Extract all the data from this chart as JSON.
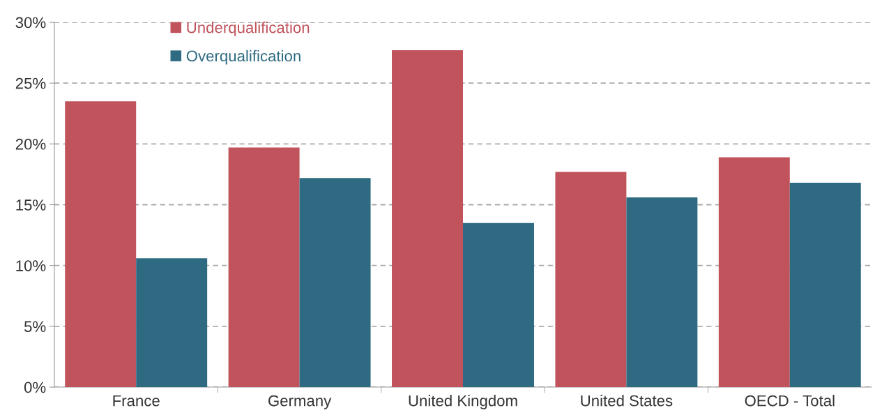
{
  "chart_data": {
    "type": "bar",
    "categories": [
      "France",
      "Germany",
      "United Kingdom",
      "United States",
      "OECD - Total"
    ],
    "series": [
      {
        "name": "Underqualification",
        "color": "#c0535b",
        "values": [
          23.5,
          19.7,
          27.7,
          17.7,
          18.9
        ]
      },
      {
        "name": "Overqualification",
        "color": "#2e6b82",
        "values": [
          10.6,
          17.2,
          13.5,
          15.6,
          16.8
        ]
      }
    ],
    "ylim": [
      0,
      30
    ],
    "yticks": [
      {
        "value": 0,
        "label": "0%"
      },
      {
        "value": 5,
        "label": "5%"
      },
      {
        "value": 10,
        "label": "10%"
      },
      {
        "value": 15,
        "label": "15%"
      },
      {
        "value": 20,
        "label": "20%"
      },
      {
        "value": 25,
        "label": "25%"
      },
      {
        "value": 30,
        "label": "30%"
      }
    ],
    "grid": "y",
    "legend": "top left"
  }
}
